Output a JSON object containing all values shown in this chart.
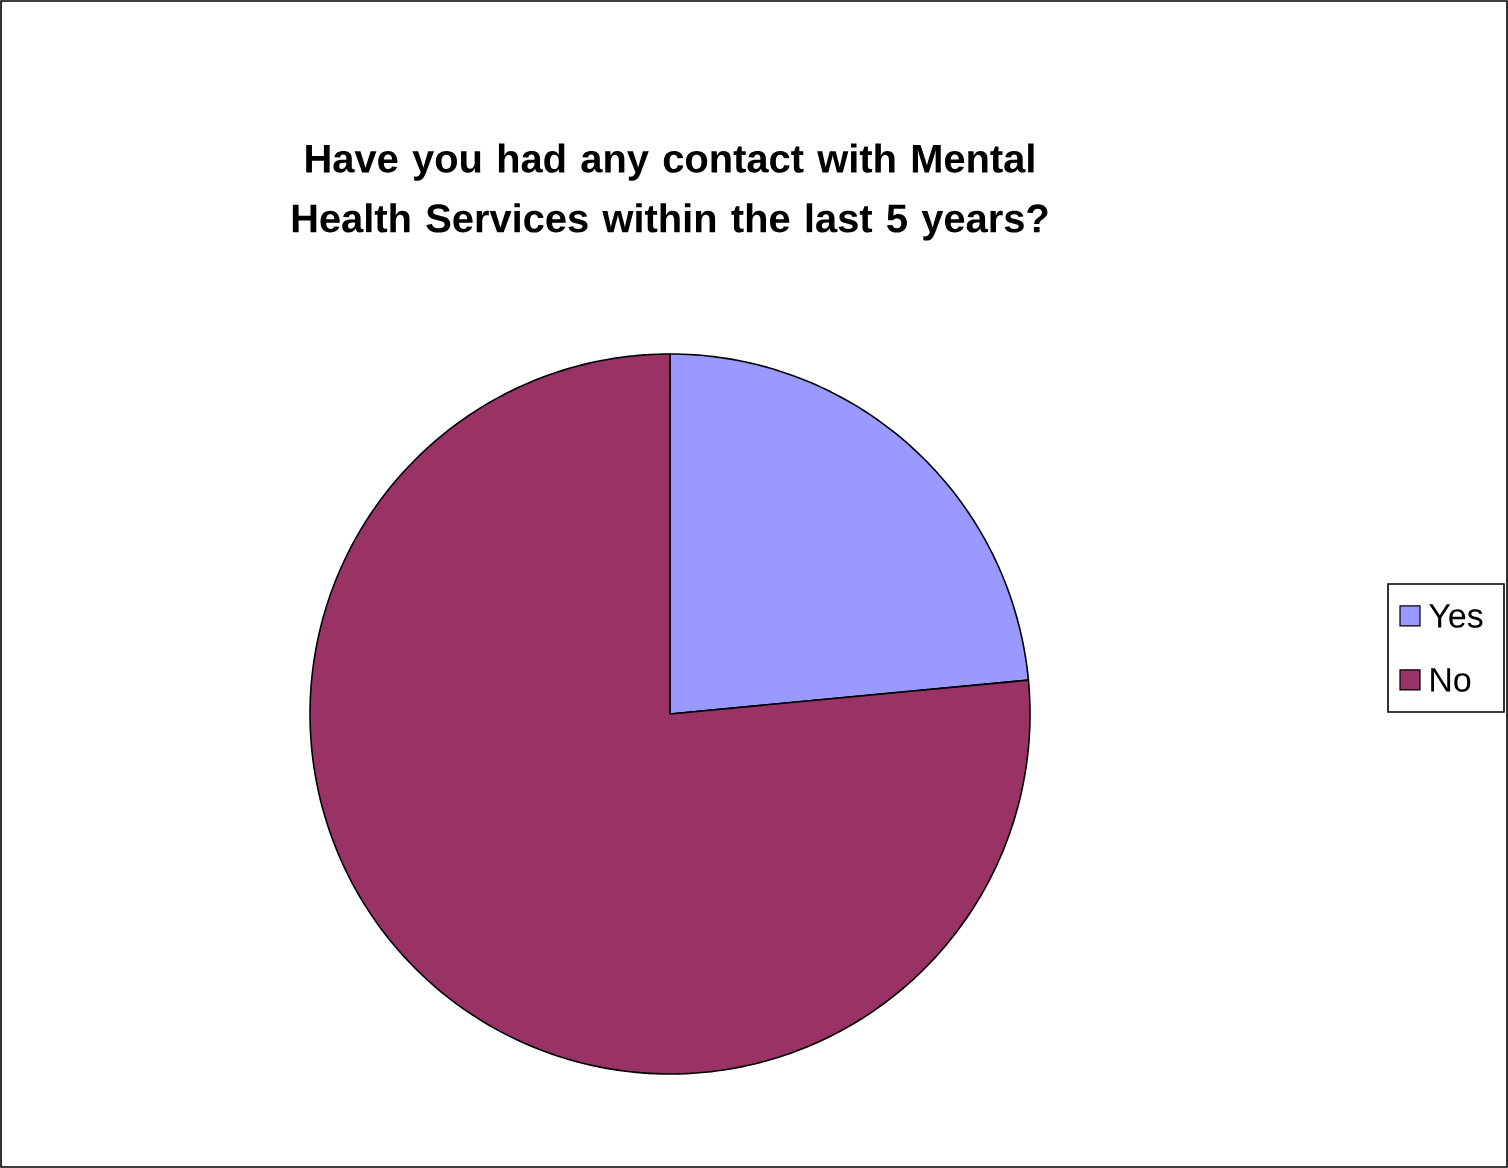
{
  "chart_data": {
    "type": "pie",
    "title": "Have you had any contact with Mental Health Services within the last 5 years?",
    "categories": [
      "Yes",
      "No"
    ],
    "values": [
      23.5,
      76.5
    ],
    "colors": [
      "#9999ff",
      "#993366"
    ],
    "legend": "right"
  }
}
